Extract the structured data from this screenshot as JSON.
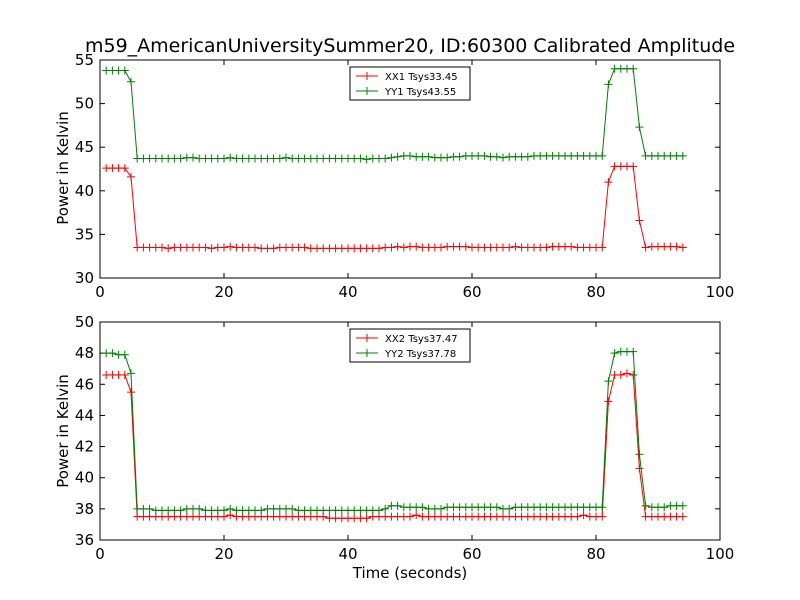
{
  "chart_data": [
    {
      "type": "line",
      "title": "m59_AmericanUniversitySummer20, ID:60300 Calibrated Amplitude",
      "xlabel": "",
      "ylabel": "Power in Kelvin",
      "xlim": [
        0,
        100
      ],
      "ylim": [
        30,
        55
      ],
      "xticks": [
        "0",
        "20",
        "40",
        "60",
        "80",
        "100"
      ],
      "yticks": [
        "30",
        "35",
        "40",
        "45",
        "50",
        "55"
      ],
      "legend_position": "top-center",
      "grid": false,
      "x": [
        1,
        2,
        3,
        4,
        5,
        6,
        7,
        8,
        9,
        10,
        11,
        12,
        13,
        14,
        15,
        16,
        17,
        18,
        19,
        20,
        21,
        22,
        23,
        24,
        25,
        26,
        27,
        28,
        29,
        30,
        31,
        32,
        33,
        34,
        35,
        36,
        37,
        38,
        39,
        40,
        41,
        42,
        43,
        44,
        45,
        46,
        47,
        48,
        49,
        50,
        51,
        52,
        53,
        54,
        55,
        56,
        57,
        58,
        59,
        60,
        61,
        62,
        63,
        64,
        65,
        66,
        67,
        68,
        69,
        70,
        71,
        72,
        73,
        74,
        75,
        76,
        77,
        78,
        79,
        80,
        81,
        82,
        83,
        84,
        85,
        86,
        87,
        88,
        89,
        90,
        91,
        92,
        93,
        94
      ],
      "series": [
        {
          "name": "XX1 Tsys33.45",
          "color": "#ff0000",
          "values": [
            42.6,
            42.6,
            42.6,
            42.6,
            41.6,
            33.5,
            33.5,
            33.5,
            33.5,
            33.5,
            33.4,
            33.5,
            33.5,
            33.5,
            33.5,
            33.5,
            33.5,
            33.4,
            33.5,
            33.5,
            33.6,
            33.5,
            33.5,
            33.5,
            33.5,
            33.4,
            33.4,
            33.4,
            33.5,
            33.5,
            33.5,
            33.5,
            33.5,
            33.4,
            33.4,
            33.4,
            33.4,
            33.4,
            33.4,
            33.4,
            33.4,
            33.4,
            33.4,
            33.4,
            33.4,
            33.5,
            33.5,
            33.6,
            33.5,
            33.6,
            33.6,
            33.5,
            33.5,
            33.5,
            33.5,
            33.6,
            33.6,
            33.6,
            33.6,
            33.5,
            33.5,
            33.5,
            33.5,
            33.5,
            33.5,
            33.5,
            33.6,
            33.5,
            33.5,
            33.5,
            33.5,
            33.5,
            33.6,
            33.6,
            33.6,
            33.6,
            33.5,
            33.5,
            33.5,
            33.5,
            33.5,
            41.0,
            42.8,
            42.8,
            42.8,
            42.8,
            36.6,
            33.5,
            33.6,
            33.6,
            33.6,
            33.6,
            33.6,
            33.5
          ]
        },
        {
          "name": "YY1 Tsys43.55",
          "color": "#008000",
          "values": [
            53.8,
            53.8,
            53.8,
            53.8,
            52.5,
            43.7,
            43.7,
            43.7,
            43.7,
            43.7,
            43.7,
            43.7,
            43.7,
            43.8,
            43.8,
            43.7,
            43.7,
            43.7,
            43.7,
            43.7,
            43.8,
            43.7,
            43.7,
            43.7,
            43.7,
            43.7,
            43.7,
            43.7,
            43.7,
            43.8,
            43.7,
            43.7,
            43.7,
            43.7,
            43.7,
            43.7,
            43.7,
            43.7,
            43.7,
            43.7,
            43.7,
            43.7,
            43.6,
            43.7,
            43.7,
            43.7,
            43.8,
            43.9,
            44.0,
            44.0,
            43.9,
            43.9,
            43.9,
            43.8,
            43.8,
            43.8,
            43.9,
            43.9,
            44.0,
            44.0,
            44.0,
            44.0,
            43.9,
            43.9,
            43.8,
            43.9,
            43.9,
            43.9,
            43.9,
            44.0,
            44.0,
            44.0,
            44.0,
            44.0,
            44.0,
            44.0,
            44.0,
            44.0,
            44.0,
            44.0,
            44.0,
            52.2,
            54.0,
            54.0,
            54.0,
            54.0,
            47.3,
            44.0,
            44.0,
            44.0,
            44.0,
            44.0,
            44.0,
            44.0
          ]
        }
      ]
    },
    {
      "type": "line",
      "title": "",
      "xlabel": "Time (seconds)",
      "ylabel": "Power in Kelvin",
      "xlim": [
        0,
        100
      ],
      "ylim": [
        36,
        50
      ],
      "xticks": [
        "0",
        "20",
        "40",
        "60",
        "80",
        "100"
      ],
      "yticks": [
        "36",
        "38",
        "40",
        "42",
        "44",
        "46",
        "48",
        "50"
      ],
      "legend_position": "top-center",
      "grid": false,
      "x": [
        1,
        2,
        3,
        4,
        5,
        6,
        7,
        8,
        9,
        10,
        11,
        12,
        13,
        14,
        15,
        16,
        17,
        18,
        19,
        20,
        21,
        22,
        23,
        24,
        25,
        26,
        27,
        28,
        29,
        30,
        31,
        32,
        33,
        34,
        35,
        36,
        37,
        38,
        39,
        40,
        41,
        42,
        43,
        44,
        45,
        46,
        47,
        48,
        49,
        50,
        51,
        52,
        53,
        54,
        55,
        56,
        57,
        58,
        59,
        60,
        61,
        62,
        63,
        64,
        65,
        66,
        67,
        68,
        69,
        70,
        71,
        72,
        73,
        74,
        75,
        76,
        77,
        78,
        79,
        80,
        81,
        82,
        83,
        84,
        85,
        86,
        87,
        88,
        89,
        90,
        91,
        92,
        93,
        94
      ],
      "series": [
        {
          "name": "XX2 Tsys37.47",
          "color": "#ff0000",
          "values": [
            46.6,
            46.6,
            46.6,
            46.6,
            45.5,
            37.5,
            37.5,
            37.5,
            37.5,
            37.5,
            37.5,
            37.5,
            37.5,
            37.5,
            37.5,
            37.5,
            37.5,
            37.5,
            37.5,
            37.5,
            37.6,
            37.5,
            37.5,
            37.5,
            37.5,
            37.5,
            37.5,
            37.5,
            37.5,
            37.5,
            37.5,
            37.5,
            37.5,
            37.5,
            37.5,
            37.5,
            37.4,
            37.4,
            37.4,
            37.4,
            37.4,
            37.4,
            37.4,
            37.5,
            37.5,
            37.5,
            37.5,
            37.5,
            37.5,
            37.5,
            37.6,
            37.5,
            37.5,
            37.5,
            37.5,
            37.5,
            37.5,
            37.5,
            37.5,
            37.5,
            37.5,
            37.5,
            37.5,
            37.5,
            37.5,
            37.5,
            37.5,
            37.5,
            37.5,
            37.5,
            37.5,
            37.5,
            37.5,
            37.5,
            37.5,
            37.5,
            37.5,
            37.6,
            37.5,
            37.5,
            37.5,
            44.9,
            46.6,
            46.6,
            46.7,
            46.6,
            40.6,
            37.5,
            37.5,
            37.5,
            37.5,
            37.5,
            37.5,
            37.5
          ]
        },
        {
          "name": "YY2 Tsys37.78",
          "color": "#008000",
          "values": [
            48.0,
            48.0,
            47.9,
            47.9,
            46.7,
            38.0,
            38.0,
            38.0,
            37.9,
            37.9,
            37.9,
            37.9,
            37.9,
            38.0,
            38.0,
            38.0,
            37.9,
            37.9,
            37.9,
            37.9,
            38.0,
            37.9,
            37.9,
            37.9,
            37.9,
            37.9,
            38.0,
            38.0,
            38.0,
            38.0,
            38.0,
            37.9,
            37.9,
            37.9,
            37.9,
            37.9,
            37.9,
            37.9,
            37.9,
            37.9,
            37.9,
            37.9,
            37.9,
            37.9,
            37.9,
            38.0,
            38.2,
            38.2,
            38.1,
            38.1,
            38.1,
            38.1,
            38.0,
            38.0,
            38.0,
            38.1,
            38.1,
            38.1,
            38.1,
            38.1,
            38.1,
            38.1,
            38.1,
            38.1,
            38.0,
            38.0,
            38.1,
            38.1,
            38.1,
            38.1,
            38.1,
            38.1,
            38.1,
            38.1,
            38.1,
            38.1,
            38.1,
            38.1,
            38.1,
            38.1,
            38.1,
            46.2,
            48.0,
            48.1,
            48.1,
            48.1,
            41.5,
            38.2,
            38.1,
            38.1,
            38.1,
            38.2,
            38.2,
            38.2
          ]
        }
      ]
    }
  ]
}
